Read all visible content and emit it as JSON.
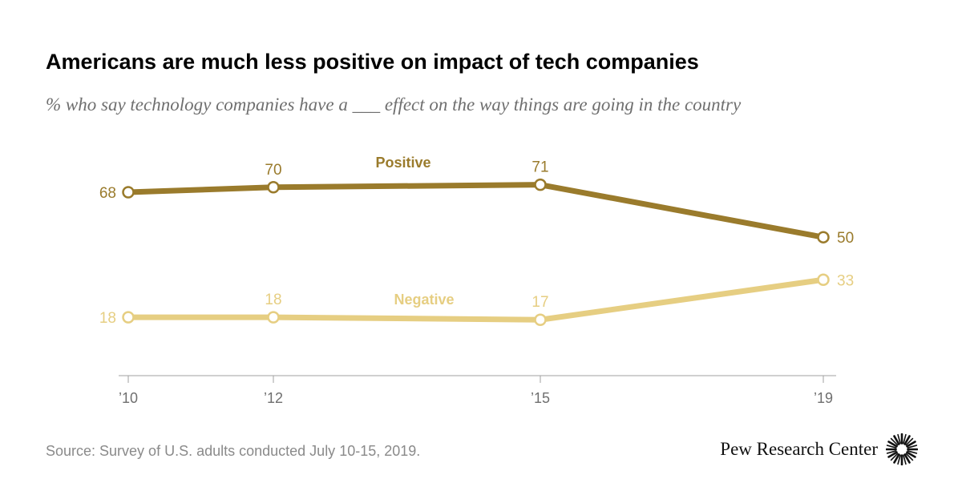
{
  "chart_data": {
    "type": "line",
    "title": "Americans are much less positive on impact of tech companies",
    "subtitle": "% who say technology companies have a ___ effect on the way things are going in the country",
    "x": [
      "’10",
      "’12",
      "’15",
      "’19"
    ],
    "series": [
      {
        "name": "Positive",
        "values": [
          68,
          70,
          71,
          50
        ],
        "value_labels": [
          "68",
          "70",
          "71",
          "50"
        ],
        "color": "#9a7b2c"
      },
      {
        "name": "Negative",
        "values": [
          18,
          18,
          17,
          33
        ],
        "value_labels": [
          "18",
          "18",
          "17",
          "33"
        ],
        "color": "#e6ce82"
      }
    ],
    "xlabel": "",
    "ylabel": "",
    "grid": false,
    "legend": "inline labels above each line"
  },
  "footer": {
    "source": "Source: Survey of U.S. adults conducted July 10-15, 2019.",
    "brand": "Pew Research Center"
  },
  "colors": {
    "title": "#000000",
    "subtitle": "#6f6f6f",
    "axis": "#a0a0a0",
    "tick_label": "#6f6f6f",
    "source": "#8a8a8a"
  },
  "icons": {
    "brand_logo": "sunburst-icon"
  }
}
